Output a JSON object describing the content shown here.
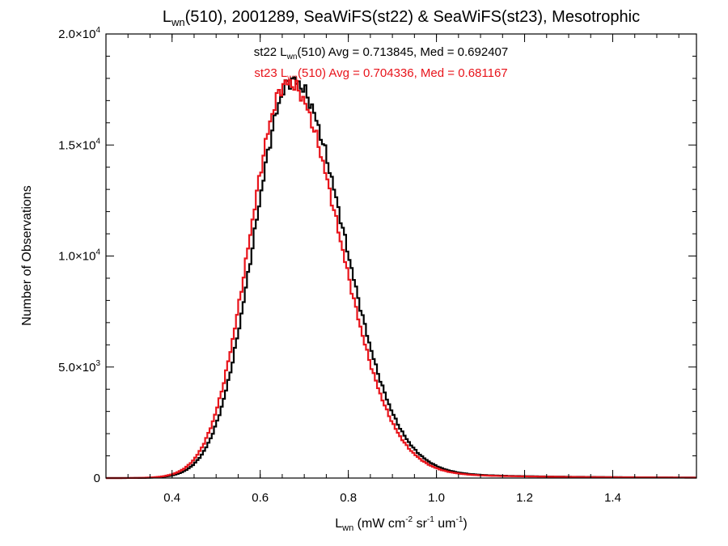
{
  "chart_data": {
    "type": "line",
    "title": {
      "main": "L",
      "sub": "wn",
      "rest": "(510), 2001289, SeaWiFS(st22) & SeaWiFS(st23), Mesotrophic"
    },
    "xlabel": {
      "main": "L",
      "sub": "wn",
      "p1": " (mW cm",
      "sup1": "-2",
      "p2": " sr",
      "sup2": "-1",
      "p3": " um",
      "sup3": "-1",
      "p4": ")"
    },
    "ylabel": "Number of Observations",
    "xlim": [
      0.25,
      1.59
    ],
    "ylim": [
      0,
      20000
    ],
    "x_ticks": [
      "0.4",
      "0.6",
      "0.8",
      "1.0",
      "1.2",
      "1.4"
    ],
    "y_ticks": [
      {
        "mant": "0",
        "exp": ""
      },
      {
        "mant": "5.0×10",
        "exp": "3"
      },
      {
        "mant": "1.0×10",
        "exp": "4"
      },
      {
        "mant": "1.5×10",
        "exp": "4"
      },
      {
        "mant": "2.0×10",
        "exp": "4"
      }
    ],
    "grid": false,
    "legend_placement": "top-center",
    "series": [
      {
        "id": "st22",
        "color": "#000000",
        "legend": {
          "a": "st22 L",
          "sub": "wn",
          "b": "(510) Avg = 0.713845, Med = 0.692407"
        },
        "peak_x": 0.672,
        "peak_y": 17900,
        "sigma_left": 0.086,
        "sigma_right": 0.118,
        "tail_level": 560,
        "avg": 0.713845,
        "median": 0.692407
      },
      {
        "id": "st23",
        "color": "#e8141b",
        "legend": {
          "a": "st23 L",
          "sub": "wn",
          "b": "(510) Avg = 0.704336, Med = 0.681167"
        },
        "peak_x": 0.662,
        "peak_y": 17800,
        "sigma_left": 0.086,
        "sigma_right": 0.118,
        "tail_level": 500,
        "avg": 0.704336,
        "median": 0.681167
      }
    ]
  }
}
